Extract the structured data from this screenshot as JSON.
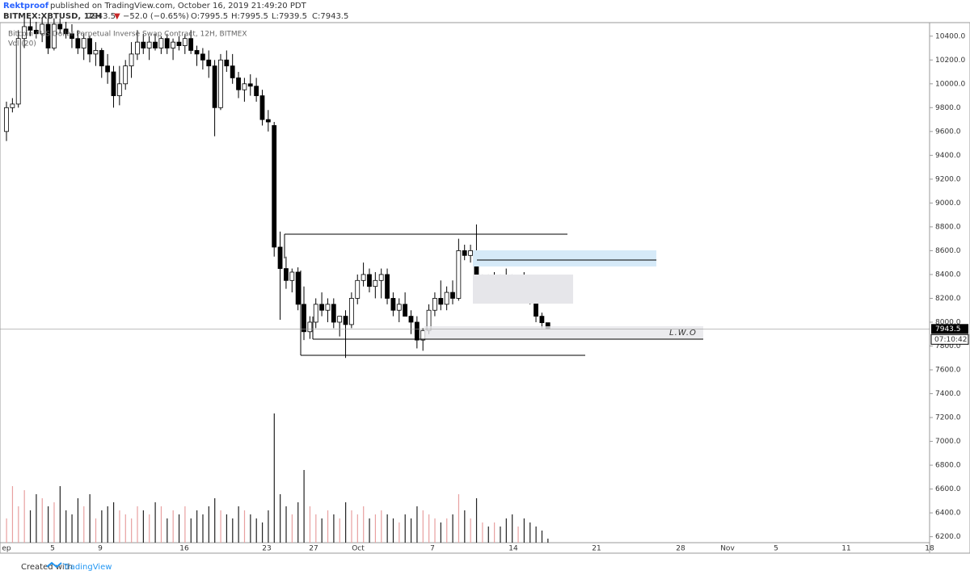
{
  "header": {
    "author": "Rektproof",
    "published": "published on TradingView.com, October 16, 2019 21:49:20 PDT",
    "symbol": "BITMEX:XBTUSD, 12H",
    "price": "7943.5",
    "arrow": "▼",
    "change": "−52.0 (−0.65%)",
    "ohlc": [
      "O:7995.5",
      "H:7995.5",
      "L:7939.5",
      "C:7943.5"
    ]
  },
  "chart_data": {
    "type": "candlestick",
    "legend": [
      "Bitcoin / US Dollar Perpetual Inverse Swap Contract, 12H, BITMEX",
      "Vol (20)"
    ],
    "xtick_labels": [
      "ep",
      "5",
      "9",
      "16",
      "23",
      "27",
      "Oct",
      "7",
      "14",
      "21",
      "28",
      "Nov",
      "5",
      "11",
      "18"
    ],
    "open": [
      9600,
      9800,
      9830,
      10380,
      10480,
      10450,
      10420,
      10500,
      10300,
      10500,
      10460,
      10420,
      10380,
      10300,
      10380,
      10250,
      10280,
      10150,
      10100,
      9900,
      10000,
      10150,
      10250,
      10350,
      10300,
      10350,
      10300,
      10380,
      10300,
      10350,
      10320,
      10380,
      10280,
      10250,
      10200,
      10150,
      9800,
      10200,
      10150,
      10050,
      9950,
      10000,
      9980,
      9900,
      9700,
      9650,
      8630,
      8450,
      8350,
      8420,
      8150,
      7920,
      8000,
      8150,
      8100,
      8150,
      8000,
      8050,
      7980,
      8200,
      8350,
      8400,
      8300,
      8350,
      8400,
      8200,
      8100,
      8150,
      8050,
      8000,
      7850,
      7930,
      8100,
      8200,
      8150,
      8250,
      8200,
      8600,
      8560,
      8600,
      8300,
      8350,
      8300,
      8380,
      8350,
      8300,
      8280,
      8350,
      8320,
      8180,
      8050,
      7995.5
    ],
    "high": [
      9850,
      9880,
      10450,
      10550,
      10550,
      10520,
      10550,
      10550,
      10550,
      10550,
      10520,
      10500,
      10450,
      10420,
      10400,
      10350,
      10300,
      10250,
      10150,
      10150,
      10200,
      10350,
      10450,
      10420,
      10400,
      10420,
      10400,
      10420,
      10380,
      10400,
      10420,
      10450,
      10320,
      10300,
      10280,
      10200,
      10250,
      10280,
      10250,
      10100,
      10050,
      10080,
      10050,
      9950,
      9780,
      9680,
      8760,
      8550,
      8450,
      8460,
      8300,
      8050,
      8200,
      8250,
      8200,
      8200,
      8050,
      8100,
      8250,
      8400,
      8500,
      8450,
      8420,
      8450,
      8450,
      8250,
      8200,
      8250,
      8100,
      8050,
      7950,
      8150,
      8250,
      8350,
      8300,
      8350,
      8700,
      8650,
      8650,
      8820,
      8400,
      8400,
      8420,
      8400,
      8450,
      8400,
      8380,
      8420,
      8350,
      8200,
      8080,
      7995.5
    ],
    "low": [
      9520,
      9760,
      9800,
      10300,
      10400,
      10380,
      10350,
      10250,
      10280,
      10420,
      10380,
      10300,
      10250,
      10200,
      10180,
      10150,
      10050,
      10000,
      9800,
      9820,
      9950,
      10050,
      10200,
      10250,
      10200,
      10280,
      10250,
      10250,
      10200,
      10280,
      10250,
      10250,
      10150,
      10120,
      10050,
      9560,
      9780,
      10100,
      10000,
      9880,
      9850,
      9900,
      9850,
      9650,
      9600,
      8550,
      8020,
      8280,
      8250,
      8100,
      7850,
      7860,
      7950,
      8050,
      8000,
      7950,
      7880,
      7700,
      7950,
      8150,
      8300,
      8250,
      8200,
      8200,
      8150,
      8050,
      8000,
      8050,
      7900,
      7780,
      7760,
      7900,
      8050,
      8100,
      8100,
      8150,
      8180,
      8520,
      8500,
      8250,
      8220,
      8250,
      8250,
      8280,
      8180,
      8220,
      8200,
      8280,
      8150,
      8000,
      7950,
      7939.5
    ],
    "close": [
      9800,
      9830,
      10380,
      10480,
      10450,
      10420,
      10500,
      10300,
      10500,
      10460,
      10420,
      10380,
      10300,
      10380,
      10250,
      10280,
      10150,
      10100,
      9900,
      10000,
      10150,
      10250,
      10350,
      10300,
      10350,
      10300,
      10380,
      10300,
      10350,
      10320,
      10380,
      10280,
      10250,
      10200,
      10150,
      9800,
      10200,
      10150,
      10050,
      9950,
      10000,
      9980,
      9900,
      9700,
      9680,
      8630,
      8450,
      8350,
      8420,
      8150,
      7920,
      8000,
      8150,
      8100,
      8150,
      8000,
      8050,
      7980,
      8200,
      8350,
      8400,
      8300,
      8350,
      8400,
      8200,
      8100,
      8150,
      8050,
      8000,
      7850,
      7930,
      8100,
      8200,
      8150,
      8250,
      8200,
      8600,
      8560,
      8600,
      8300,
      8350,
      8300,
      8380,
      8350,
      8300,
      8280,
      8350,
      8320,
      8180,
      8050,
      7995.5,
      7943.5
    ],
    "volume": [
      30,
      70,
      45,
      65,
      40,
      60,
      55,
      45,
      50,
      70,
      40,
      35,
      55,
      45,
      60,
      30,
      40,
      45,
      50,
      40,
      35,
      30,
      45,
      40,
      35,
      50,
      45,
      30,
      40,
      35,
      45,
      30,
      40,
      35,
      45,
      55,
      40,
      35,
      30,
      45,
      40,
      35,
      30,
      25,
      40,
      160,
      60,
      45,
      35,
      50,
      90,
      45,
      35,
      30,
      40,
      35,
      30,
      50,
      40,
      35,
      45,
      30,
      35,
      40,
      35,
      30,
      25,
      35,
      30,
      45,
      40,
      35,
      30,
      25,
      30,
      35,
      60,
      40,
      30,
      55,
      25,
      20,
      25,
      20,
      30,
      35,
      20,
      30,
      25,
      20,
      15,
      5
    ],
    "yticks": [
      {
        "value": 6200,
        "label": "6200.0"
      },
      {
        "value": 6400,
        "label": "6400.0"
      },
      {
        "value": 6600,
        "label": "6600.0"
      },
      {
        "value": 6800,
        "label": "6800.0"
      },
      {
        "value": 7000,
        "label": "7000.0"
      },
      {
        "value": 7200,
        "label": "7200.0"
      },
      {
        "value": 7400,
        "label": "7400.0"
      },
      {
        "value": 7600,
        "label": "7600.0"
      },
      {
        "value": 7800,
        "label": "7800.0"
      },
      {
        "value": 8000,
        "label": "8000.0"
      },
      {
        "value": 8200,
        "label": "8200.0"
      },
      {
        "value": 8400,
        "label": "8400.0"
      },
      {
        "value": 8600,
        "label": "8600.0"
      },
      {
        "value": 8800,
        "label": "8800.0"
      },
      {
        "value": 9000,
        "label": "9000.0"
      },
      {
        "value": 9200,
        "label": "9200.0"
      },
      {
        "value": 9400,
        "label": "9400.0"
      },
      {
        "value": 9600,
        "label": "9600.0"
      },
      {
        "value": 9800,
        "label": "9800.0"
      },
      {
        "value": 10000,
        "label": "10000.0"
      },
      {
        "value": 10200,
        "label": "10200.0"
      },
      {
        "value": 10400,
        "label": "10400.0"
      }
    ],
    "ylim": [
      6150,
      10500
    ],
    "countdown": "07:10:42",
    "annotation": "L.W.O"
  },
  "footer": {
    "text": "Created with",
    "brand": "TradingView"
  }
}
